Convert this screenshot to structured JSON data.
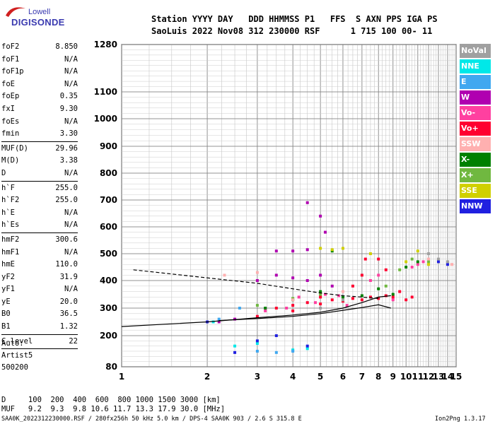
{
  "header": {
    "line1": "Station YYYY DAY   DDD HHMMSS P1   FFS  S AXN PPS IGA PS",
    "line2": "SaoLuis 2022 Nov08 312 230000 RSF      1 715 100 00- 11"
  },
  "logo": {
    "brand": "Lowell",
    "product": "DIGISONDE"
  },
  "params": [
    {
      "name": "foF2",
      "value": "8.850"
    },
    {
      "name": "foF1",
      "value": "N/A"
    },
    {
      "name": "foF1p",
      "value": "N/A"
    },
    {
      "name": "foE",
      "value": "N/A"
    },
    {
      "name": "foEp",
      "value": "0.35"
    },
    {
      "name": "fxI",
      "value": "9.30"
    },
    {
      "name": "foEs",
      "value": "N/A"
    },
    {
      "name": "fmin",
      "value": "3.30"
    },
    {
      "name": "MUF(D)",
      "value": "29.96",
      "sep": true
    },
    {
      "name": "M(D)",
      "value": "3.38"
    },
    {
      "name": "D",
      "value": "N/A"
    },
    {
      "name": "h`F",
      "value": "255.0",
      "sep": true
    },
    {
      "name": "h`F2",
      "value": "255.0"
    },
    {
      "name": "h`E",
      "value": "N/A"
    },
    {
      "name": "h`Es",
      "value": "N/A"
    },
    {
      "name": "hmF2",
      "value": "300.6",
      "sep": true
    },
    {
      "name": "hmF1",
      "value": "N/A"
    },
    {
      "name": "hmE",
      "value": "110.0"
    },
    {
      "name": "yF2",
      "value": "31.9"
    },
    {
      "name": "yF1",
      "value": "N/A"
    },
    {
      "name": "yE",
      "value": "20.0"
    },
    {
      "name": "B0",
      "value": "36.5"
    },
    {
      "name": "B1",
      "value": "1.32"
    },
    {
      "name": "C-level",
      "value": "22",
      "sep": true
    }
  ],
  "auto": {
    "line1": "Auto:",
    "line2": "Artist5",
    "line3": "500200"
  },
  "footer": {
    "d_line": "D     100  200  400  600  800 1000 1500 3000 [km]",
    "muf_line": "MUF   9.2  9.3  9.8 10.6 11.7 13.3 17.9 30.0 [MHz]",
    "status": "SAA0K_2022312230000.RSF / 280fx256h 50 kHz 5.0 km / DPS-4 SAA0K 903 / 2.6 S 315.8 E",
    "version": "Ion2Png 1.3.17"
  },
  "legend": [
    {
      "label": "NoVal",
      "color": "#a0a0a0"
    },
    {
      "label": "NNE",
      "color": "#00e8e8"
    },
    {
      "label": "E",
      "color": "#40a8f0"
    },
    {
      "label": "W",
      "color": "#b000b0"
    },
    {
      "label": "Vo-",
      "color": "#ff40a0"
    },
    {
      "label": "Vo+",
      "color": "#ff0030"
    },
    {
      "label": "SSW",
      "color": "#ffb0b0"
    },
    {
      "label": "X-",
      "color": "#008000"
    },
    {
      "label": "X+",
      "color": "#70b840"
    },
    {
      "label": "SSE",
      "color": "#d0d000"
    },
    {
      "label": "NNW",
      "color": "#2020e0"
    }
  ],
  "chart_data": {
    "type": "scatter",
    "xlim": [
      1,
      15
    ],
    "ylim": [
      80,
      1280
    ],
    "xticks": [
      1,
      2,
      3,
      4,
      5,
      6,
      7,
      8,
      9,
      10,
      11,
      12,
      13,
      14,
      15
    ],
    "yticks": [
      80,
      200,
      300,
      400,
      500,
      600,
      700,
      800,
      900,
      1000,
      1100,
      1280
    ],
    "grid": true,
    "x_scale": "log",
    "y_scale": "linear-nonuniform",
    "series": [
      {
        "name": "Vo+",
        "color": "#ff0030",
        "points": [
          [
            3.5,
            300
          ],
          [
            4,
            310
          ],
          [
            4.5,
            320
          ],
          [
            5,
            315
          ],
          [
            5.5,
            330
          ],
          [
            6,
            325
          ],
          [
            6.5,
            335
          ],
          [
            7,
            330
          ],
          [
            7.5,
            340
          ],
          [
            8,
            335
          ],
          [
            8.5,
            345
          ],
          [
            9,
            340
          ],
          [
            9.5,
            360
          ],
          [
            10,
            330
          ],
          [
            10.5,
            340
          ],
          [
            7,
            420
          ],
          [
            7.2,
            480
          ],
          [
            8,
            480
          ],
          [
            8.5,
            440
          ],
          [
            6.5,
            380
          ],
          [
            5,
            340
          ],
          [
            4,
            290
          ],
          [
            3,
            270
          ]
        ]
      },
      {
        "name": "Vo-",
        "color": "#ff40a0",
        "points": [
          [
            3.2,
            290
          ],
          [
            3.8,
            300
          ],
          [
            4.2,
            340
          ],
          [
            4.8,
            320
          ],
          [
            5.2,
            350
          ],
          [
            5.8,
            345
          ],
          [
            6.2,
            310
          ],
          [
            7.5,
            400
          ],
          [
            8,
            420
          ],
          [
            9,
            330
          ],
          [
            10.5,
            450
          ],
          [
            11,
            460
          ],
          [
            11.5,
            470
          ]
        ]
      },
      {
        "name": "W",
        "color": "#b000b0",
        "points": [
          [
            2.2,
            250
          ],
          [
            2.5,
            260
          ],
          [
            3,
            400
          ],
          [
            3.5,
            420
          ],
          [
            4,
            410
          ],
          [
            4.5,
            400
          ],
          [
            5,
            420
          ],
          [
            5.5,
            380
          ],
          [
            3.5,
            510
          ],
          [
            4,
            510
          ],
          [
            4.5,
            515
          ],
          [
            5,
            640
          ],
          [
            4.5,
            690
          ],
          [
            5.2,
            580
          ]
        ]
      },
      {
        "name": "X-",
        "color": "#008000",
        "points": [
          [
            3.2,
            300
          ],
          [
            4,
            330
          ],
          [
            5,
            360
          ],
          [
            6,
            340
          ],
          [
            7,
            345
          ],
          [
            8,
            370
          ],
          [
            9,
            350
          ],
          [
            10,
            450
          ],
          [
            11,
            470
          ],
          [
            5.5,
            510
          ]
        ]
      },
      {
        "name": "X+",
        "color": "#70b840",
        "points": [
          [
            3,
            310
          ],
          [
            4,
            335
          ],
          [
            5,
            350
          ],
          [
            6,
            330
          ],
          [
            8.5,
            380
          ],
          [
            9.5,
            440
          ],
          [
            10.5,
            480
          ],
          [
            12,
            470
          ]
        ]
      },
      {
        "name": "SSE",
        "color": "#d0d000",
        "points": [
          [
            5,
            520
          ],
          [
            5.5,
            515
          ],
          [
            6,
            520
          ],
          [
            7.5,
            500
          ],
          [
            10,
            470
          ],
          [
            11,
            510
          ],
          [
            12,
            460
          ],
          [
            13,
            470
          ]
        ]
      },
      {
        "name": "NNE",
        "color": "#00e8e8",
        "points": [
          [
            2.1,
            250
          ],
          [
            2.5,
            160
          ],
          [
            3,
            170
          ],
          [
            4,
            145
          ],
          [
            4.5,
            150
          ]
        ]
      },
      {
        "name": "E",
        "color": "#40a8f0",
        "points": [
          [
            2.2,
            260
          ],
          [
            2.6,
            300
          ],
          [
            3,
            140
          ],
          [
            3.5,
            135
          ],
          [
            4,
            140
          ]
        ]
      },
      {
        "name": "NNW",
        "color": "#2020e0",
        "points": [
          [
            2,
            250
          ],
          [
            2.5,
            135
          ],
          [
            3,
            180
          ],
          [
            3.5,
            200
          ],
          [
            4.5,
            160
          ],
          [
            13,
            470
          ],
          [
            14,
            460
          ]
        ]
      },
      {
        "name": "SSW",
        "color": "#ffb0b0",
        "points": [
          [
            2.3,
            420
          ],
          [
            3,
            430
          ],
          [
            4,
            330
          ],
          [
            6,
            360
          ],
          [
            12,
            480
          ],
          [
            14.5,
            460
          ]
        ]
      },
      {
        "name": "NoVal",
        "color": "#a0a0a0",
        "points": [
          [
            5,
            300
          ],
          [
            6,
            330
          ],
          [
            12,
            500
          ],
          [
            13,
            480
          ],
          [
            14,
            470
          ]
        ]
      }
    ],
    "traces": [
      {
        "name": "profile",
        "x": [
          1,
          2,
          3,
          4,
          5,
          6,
          7,
          8,
          8.85
        ],
        "y": [
          233,
          250,
          265,
          275,
          285,
          300,
          320,
          340,
          345
        ]
      },
      {
        "name": "profile2",
        "x": [
          2.2,
          3,
          4,
          5,
          6,
          7,
          8,
          8.85
        ],
        "y": [
          255,
          262,
          270,
          280,
          292,
          302,
          312,
          300
        ]
      },
      {
        "name": "dashed",
        "x": [
          1.1,
          2,
          3,
          4,
          5,
          6,
          7,
          8
        ],
        "y": [
          440,
          410,
          390,
          370,
          355,
          345,
          340,
          335
        ]
      }
    ]
  }
}
